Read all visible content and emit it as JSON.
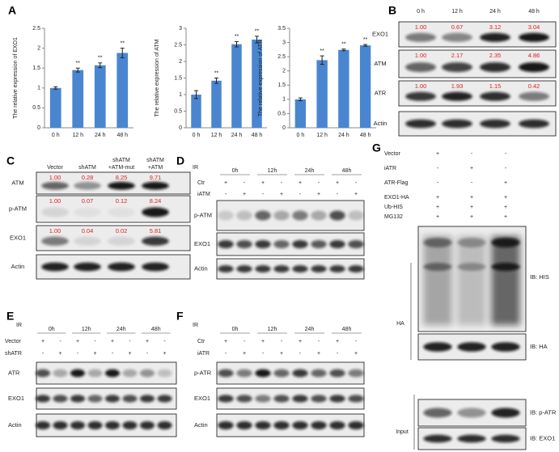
{
  "panel_labels": [
    "A",
    "B",
    "C",
    "D",
    "E",
    "F",
    "G"
  ],
  "chart_data": [
    {
      "type": "bar",
      "y_label": "The relative expression of EXO1",
      "categories": [
        "0 h",
        "12 h",
        "24 h",
        "48 h"
      ],
      "values": [
        1.0,
        1.45,
        1.57,
        1.88
      ],
      "errors": [
        0.03,
        0.05,
        0.06,
        0.12
      ],
      "significance": [
        null,
        "**",
        "**",
        "**"
      ],
      "color": "#4a86d0",
      "ylim": [
        0,
        2.5
      ],
      "yticks": [
        0,
        0.5,
        1,
        1.5,
        2,
        2.5
      ]
    },
    {
      "type": "bar",
      "y_label": "The relative expression of ATM",
      "categories": [
        "0 h",
        "12 h",
        "24 h",
        "48 h"
      ],
      "values": [
        1.0,
        1.42,
        2.52,
        2.66
      ],
      "errors": [
        0.12,
        0.08,
        0.08,
        0.1
      ],
      "significance": [
        null,
        "**",
        "**",
        "**"
      ],
      "color": "#4a86d0",
      "ylim": [
        0,
        3
      ],
      "yticks": [
        0,
        0.5,
        1,
        1.5,
        2,
        2.5,
        3
      ]
    },
    {
      "type": "bar",
      "y_label": "The relative expression of ATR",
      "categories": [
        "0 h",
        "12 h",
        "24 h",
        "48 h"
      ],
      "values": [
        1.0,
        2.38,
        2.74,
        2.9
      ],
      "errors": [
        0.05,
        0.15,
        0.03,
        0.03
      ],
      "significance": [
        null,
        "**",
        "**",
        "**"
      ],
      "color": "#4a86d0",
      "ylim": [
        0,
        3.5
      ],
      "yticks": [
        0,
        0.5,
        1,
        1.5,
        2,
        2.5,
        3,
        3.5
      ]
    }
  ],
  "panel_b": {
    "timepoints": [
      "0 h",
      "12 h",
      "24 h",
      "48 h"
    ],
    "blots": [
      {
        "label": "EXO1",
        "quant": [
          "1.00",
          "0.67",
          "3.12",
          "3.04"
        ]
      },
      {
        "label": "ATM",
        "quant": [
          "1.00",
          "2.17",
          "2.35",
          "4.86"
        ]
      },
      {
        "label": "ATR",
        "quant": [
          "1.00",
          "1.93",
          "1.15",
          "0.42"
        ]
      },
      {
        "label": "Actin"
      }
    ]
  },
  "panel_c": {
    "columns": [
      [
        "Vector"
      ],
      [
        "shATM"
      ],
      [
        "shATM",
        "+ATM-mut"
      ],
      [
        "shATM",
        "+ATM"
      ]
    ],
    "blots": [
      {
        "label": "ATM",
        "quant": [
          "1.00",
          "0.28",
          "8.25",
          "9.71"
        ]
      },
      {
        "label": "p-ATM",
        "quant": [
          "1.00",
          "0.07",
          "0.12",
          "8.24"
        ]
      },
      {
        "label": "EXO1",
        "quant": [
          "1.00",
          "0.04",
          "0.02",
          "5.81"
        ]
      },
      {
        "label": "Actin"
      }
    ]
  },
  "panel_d": {
    "treatment": "IR",
    "timepoints": [
      "0h",
      "12h",
      "24h",
      "48h"
    ],
    "conditions": [
      {
        "label": "Ctr",
        "marks": [
          "+",
          "-",
          "+",
          "-",
          "+",
          "-",
          "+",
          "-"
        ]
      },
      {
        "label": "iATM",
        "marks": [
          "-",
          "+",
          "-",
          "+",
          "-",
          "+",
          "-",
          "+"
        ]
      }
    ],
    "blots": [
      {
        "label": "p-ATM"
      },
      {
        "label": "EXO1"
      },
      {
        "label": "Actin"
      }
    ]
  },
  "panel_e": {
    "treatment": "IR",
    "timepoints": [
      "0h",
      "12h",
      "24h",
      "48h"
    ],
    "conditions": [
      {
        "label": "Vector",
        "marks": [
          "+",
          "-",
          "+",
          "-",
          "+",
          "-",
          "+",
          "-"
        ]
      },
      {
        "label": "shATR",
        "marks": [
          "-",
          "+",
          "-",
          "+",
          "-",
          "+",
          "-",
          "+"
        ]
      }
    ],
    "blots": [
      {
        "label": "ATR"
      },
      {
        "label": "EXO1"
      },
      {
        "label": "Actin"
      }
    ]
  },
  "panel_f": {
    "treatment": "IR",
    "timepoints": [
      "0h",
      "12h",
      "24h",
      "48h"
    ],
    "conditions": [
      {
        "label": "Ctr",
        "marks": [
          "+",
          "-",
          "+",
          "-",
          "+",
          "-",
          "+",
          "-"
        ]
      },
      {
        "label": "iATR",
        "marks": [
          "-",
          "+",
          "-",
          "+",
          "-",
          "+",
          "-",
          "+"
        ]
      }
    ],
    "blots": [
      {
        "label": "p-ATR"
      },
      {
        "label": "EXO1"
      },
      {
        "label": "Actin"
      }
    ]
  },
  "panel_g": {
    "conditions": [
      {
        "label": "Vector",
        "marks": [
          "+",
          "-",
          "-"
        ]
      },
      {
        "label": "iATR",
        "marks": [
          "-",
          "+",
          "-"
        ]
      },
      {
        "label": "ATR-Flag",
        "marks": [
          "-",
          "-",
          "+"
        ]
      },
      {
        "label": "EXO1-HA",
        "marks": [
          "+",
          "+",
          "+"
        ]
      },
      {
        "label": "Ub-HIS",
        "marks": [
          "+",
          "+",
          "+"
        ]
      },
      {
        "label": "MG132",
        "marks": [
          "+",
          "+",
          "+"
        ]
      }
    ],
    "blots": [
      {
        "label": "IB: HIS"
      },
      {
        "label": "IB: HA"
      },
      {
        "label": "IB: p-ATR"
      },
      {
        "label": "IB: EXO1"
      }
    ],
    "groups": [
      "HA",
      "Input"
    ]
  }
}
